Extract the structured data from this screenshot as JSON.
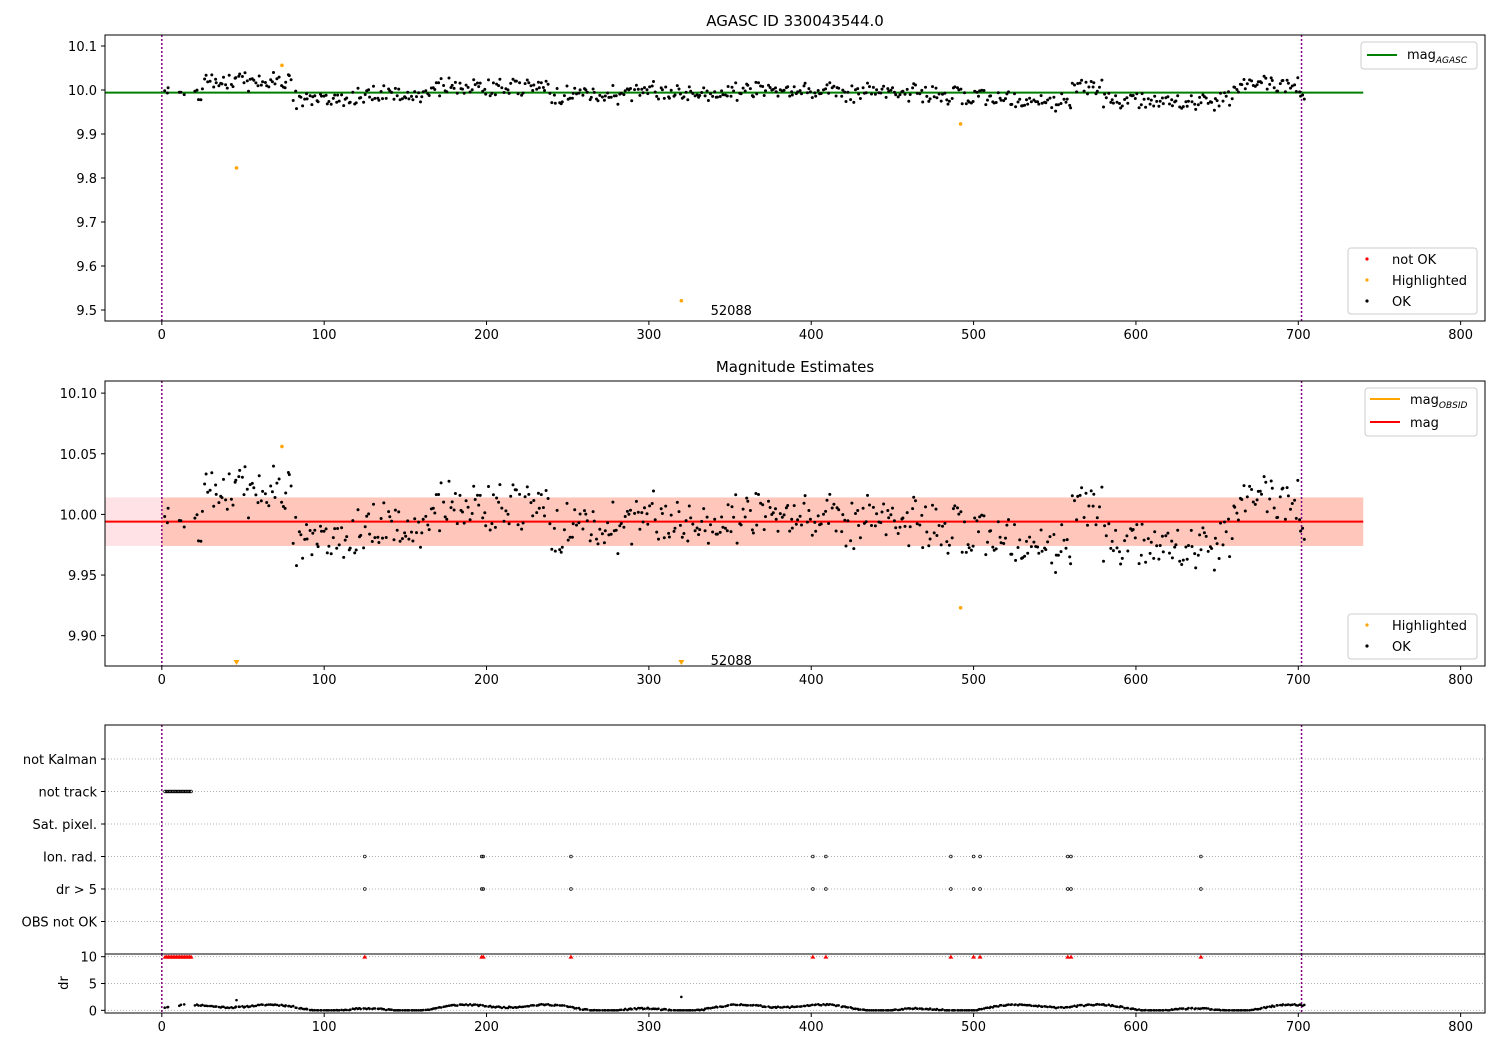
{
  "chart_data": [
    {
      "type": "scatter",
      "title": "AGASC ID 330043544.0",
      "xlabel": "",
      "ylabel": "",
      "xlim": [
        -35,
        815
      ],
      "ylim": [
        9.475,
        10.125
      ],
      "xticks": [
        0,
        100,
        200,
        300,
        400,
        500,
        600,
        700,
        800
      ],
      "yticks": [
        9.5,
        9.6,
        9.7,
        9.8,
        9.9,
        10.0,
        10.1
      ],
      "ytick_labels": [
        "9.5",
        "9.6",
        "9.7",
        "9.8",
        "9.9",
        "10.0",
        "10.1"
      ],
      "vlines": [
        0,
        702
      ],
      "ref_line": {
        "name": "mag_AGASC",
        "y": 9.994,
        "x": [
          -35,
          740
        ],
        "color": "#008000"
      },
      "ok_points": {
        "seed": 7,
        "count": 640,
        "x_range": [
          2,
          704
        ]
      },
      "highlighted": [
        {
          "x": 46,
          "y": 9.823
        },
        {
          "x": 74,
          "y": 10.056
        },
        {
          "x": 320,
          "y": 9.521
        },
        {
          "x": 492,
          "y": 9.923
        }
      ],
      "annotation": {
        "text": "52088",
        "x": 338,
        "y": 9.5
      },
      "legends": [
        {
          "position": "top-right",
          "entries": [
            {
              "label": "mag",
              "sub": "AGASC",
              "symbol": "line",
              "color": "#008000"
            }
          ]
        },
        {
          "position": "bottom-right",
          "entries": [
            {
              "label": "not OK",
              "symbol": "dot",
              "color": "#ff0000"
            },
            {
              "label": "Highlighted",
              "symbol": "dot",
              "color": "#ffa500"
            },
            {
              "label": "OK",
              "symbol": "dot",
              "color": "#000000"
            }
          ]
        }
      ]
    },
    {
      "type": "scatter",
      "title": "Magnitude Estimates",
      "xlabel": "",
      "ylabel": "",
      "xlim": [
        -35,
        815
      ],
      "ylim": [
        9.875,
        10.11
      ],
      "xticks": [
        0,
        100,
        200,
        300,
        400,
        500,
        600,
        700,
        800
      ],
      "yticks": [
        9.9,
        9.95,
        10.0,
        10.05,
        10.1
      ],
      "ytick_labels": [
        "9.90",
        "9.95",
        "10.00",
        "10.05",
        "10.10"
      ],
      "vlines": [
        0,
        702
      ],
      "mag_line": {
        "name": "mag",
        "y": 9.994,
        "x": [
          -35,
          740
        ],
        "color": "#ff0000"
      },
      "bands": [
        {
          "y": [
            9.974,
            10.014
          ],
          "x": [
            -35,
            740
          ],
          "color": "#ffb6c1",
          "opacity": 0.4
        },
        {
          "y": [
            9.974,
            10.014
          ],
          "x": [
            0,
            740
          ],
          "color": "#ffa07a",
          "opacity": 0.4
        }
      ],
      "highlighted": [
        {
          "x": 74,
          "y": 10.056
        },
        {
          "x": 492,
          "y": 9.923
        }
      ],
      "clipped_markers": [
        {
          "x": 46
        },
        {
          "x": 320
        }
      ],
      "annotation": {
        "text": "52088",
        "x": 338,
        "y": 9.88
      },
      "legends": [
        {
          "position": "top-right",
          "entries": [
            {
              "label": "mag",
              "sub": "OBSID",
              "symbol": "line",
              "color": "#ffa500"
            },
            {
              "label": "mag",
              "symbol": "line",
              "color": "#ff0000"
            }
          ]
        },
        {
          "position": "bottom-right",
          "entries": [
            {
              "label": "Highlighted",
              "symbol": "dot",
              "color": "#ffa500"
            },
            {
              "label": "OK",
              "symbol": "dot",
              "color": "#000000"
            }
          ]
        }
      ]
    },
    {
      "type": "scatter",
      "title": "",
      "xlabel": "",
      "xlim": [
        -35,
        815
      ],
      "xticks": [
        0,
        100,
        200,
        300,
        400,
        500,
        600,
        700,
        800
      ],
      "vlines": [
        0,
        702
      ],
      "flag_rows": [
        "not Kalman",
        "not track",
        "Sat. pixel.",
        "Ion. rad.",
        "dr > 5",
        "OBS not OK"
      ],
      "flags": {
        "not track": [
          2,
          3,
          4,
          5,
          6,
          7,
          8,
          9,
          10,
          11,
          12,
          13,
          14,
          15,
          16,
          17,
          18
        ],
        "Ion. rad.": [
          125,
          197,
          198,
          252,
          401,
          409,
          486,
          500,
          504,
          558,
          560,
          640
        ],
        "dr > 5": [
          125,
          197,
          198,
          252,
          401,
          409,
          486,
          500,
          504,
          558,
          560,
          640
        ]
      },
      "dr_panel": {
        "ylabel": "dr",
        "yticks": [
          0,
          5,
          10
        ],
        "ytick_labels": [
          "0",
          "5",
          "10"
        ],
        "ylim": [
          -0.5,
          10.5
        ],
        "clipped_red": [
          2,
          3,
          4,
          5,
          6,
          7,
          8,
          9,
          10,
          11,
          12,
          13,
          14,
          15,
          16,
          17,
          18,
          125,
          197,
          198,
          252,
          401,
          409,
          486,
          500,
          504,
          558,
          560,
          640
        ],
        "outliers": [
          {
            "x": 46,
            "y": 1.9
          },
          {
            "x": 320,
            "y": 2.5
          }
        ]
      }
    }
  ]
}
